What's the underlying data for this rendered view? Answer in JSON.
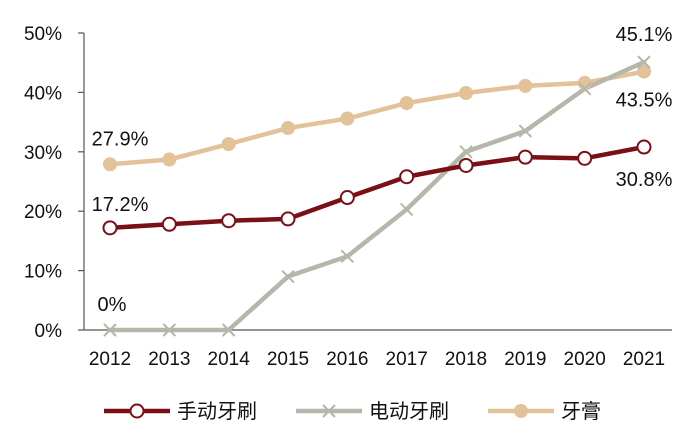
{
  "chart_data": {
    "type": "line",
    "categories": [
      "2012",
      "2013",
      "2014",
      "2015",
      "2016",
      "2017",
      "2018",
      "2019",
      "2020",
      "2021"
    ],
    "ylim": [
      0,
      50
    ],
    "yticks": [
      0,
      10,
      20,
      30,
      40,
      50
    ],
    "ytick_labels": [
      "0%",
      "10%",
      "20%",
      "30%",
      "40%",
      "50%"
    ],
    "grid": false,
    "legend_position": "bottom",
    "series": [
      {
        "name": "手动牙刷",
        "color": "#7b0f16",
        "marker": "open-circle",
        "values": [
          17.2,
          17.8,
          18.4,
          18.7,
          22.3,
          25.8,
          27.7,
          29.1,
          28.9,
          30.8
        ]
      },
      {
        "name": "电动牙刷",
        "color": "#b5b7aa",
        "marker": "x",
        "values": [
          0,
          0,
          0,
          9.0,
          12.4,
          20.3,
          30.0,
          33.5,
          40.6,
          45.1
        ]
      },
      {
        "name": "牙膏",
        "color": "#e3c199",
        "marker": "filled-circle",
        "values": [
          27.9,
          28.7,
          31.3,
          34.0,
          35.6,
          38.2,
          39.9,
          41.1,
          41.6,
          43.5
        ]
      }
    ],
    "annotations": [
      {
        "text": "27.9%",
        "series": 2,
        "index": 0
      },
      {
        "text": "17.2%",
        "series": 0,
        "index": 0
      },
      {
        "text": "0%",
        "series": 1,
        "index": 0
      },
      {
        "text": "45.1%",
        "series": 1,
        "index": 9
      },
      {
        "text": "43.5%",
        "series": 2,
        "index": 9
      },
      {
        "text": "30.8%",
        "series": 0,
        "index": 9
      }
    ]
  }
}
